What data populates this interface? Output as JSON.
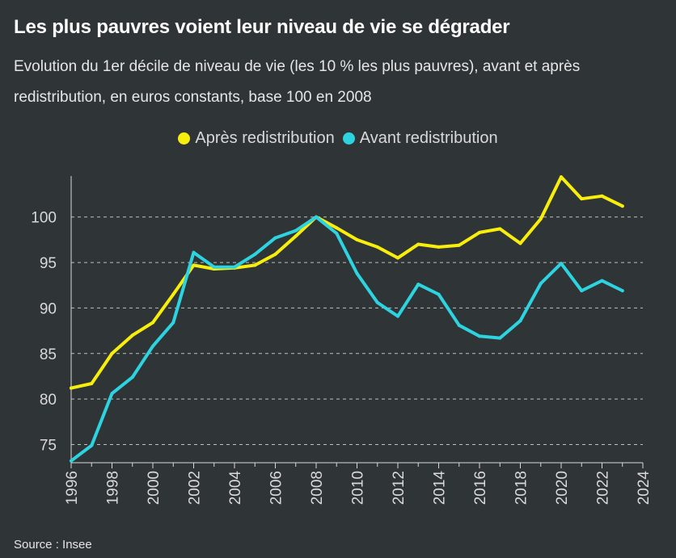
{
  "title": "Les plus pauvres voient leur niveau de vie se dégrader",
  "subtitle": "Evolution du 1er décile de niveau de vie (les 10 % les plus pauvres), avant et après redistribution, en euros constants, base 100 en 2008",
  "source": "Source : Insee",
  "colors": {
    "background": "#2f3437",
    "apres": "#f7ee0c",
    "avant": "#2ed3e0",
    "grid": "#bfbfbf",
    "axis": "#d9d9d9"
  },
  "chart_data": {
    "type": "line",
    "x": [
      1996,
      1997,
      1998,
      1999,
      2000,
      2001,
      2002,
      2003,
      2004,
      2005,
      2006,
      2007,
      2008,
      2009,
      2010,
      2011,
      2012,
      2013,
      2014,
      2015,
      2016,
      2017,
      2018,
      2019,
      2020,
      2021,
      2022,
      2023
    ],
    "series": [
      {
        "name": "Après redistribution",
        "color": "#f7ee0c",
        "values": [
          81.2,
          81.7,
          85.0,
          87.0,
          88.4,
          91.5,
          94.7,
          94.3,
          94.4,
          94.7,
          95.9,
          97.9,
          100.0,
          98.8,
          97.5,
          96.7,
          95.5,
          97.0,
          96.7,
          96.9,
          98.3,
          98.7,
          97.1,
          99.8,
          104.4,
          102.0,
          102.3,
          101.2
        ]
      },
      {
        "name": "Avant redistribution",
        "color": "#2ed3e0",
        "values": [
          73.2,
          74.9,
          80.6,
          82.4,
          85.8,
          88.4,
          96.1,
          94.5,
          94.5,
          95.9,
          97.7,
          98.5,
          100.0,
          98.2,
          93.8,
          90.6,
          89.1,
          92.6,
          91.5,
          88.1,
          86.9,
          86.7,
          88.6,
          92.7,
          94.9,
          91.9,
          93.0,
          91.9
        ]
      }
    ],
    "xlim": [
      1996,
      2024
    ],
    "ylim": [
      73,
      104.5
    ],
    "xticks": [
      1996,
      1998,
      2000,
      2002,
      2004,
      2006,
      2008,
      2010,
      2012,
      2014,
      2016,
      2018,
      2020,
      2022,
      2024
    ],
    "yticks": [
      75,
      80,
      85,
      90,
      95,
      100
    ],
    "grid": "horizontal dashed",
    "legend_position": "top-center"
  }
}
